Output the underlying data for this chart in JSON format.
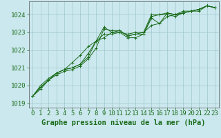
{
  "background_color": "#cbe8ee",
  "plot_bg_color": "#cbe8ee",
  "grid_color": "#a0c8cc",
  "line_color": "#1a6b1a",
  "xlabel": "Graphe pression niveau de la mer (hPa)",
  "xlabel_fontsize": 7.5,
  "tick_fontsize": 6.5,
  "xlim": [
    -0.5,
    23.5
  ],
  "ylim": [
    1018.75,
    1024.75
  ],
  "yticks": [
    1019,
    1020,
    1021,
    1022,
    1023,
    1024
  ],
  "xticks": [
    0,
    1,
    2,
    3,
    4,
    5,
    6,
    7,
    8,
    9,
    10,
    11,
    12,
    13,
    14,
    15,
    16,
    17,
    18,
    19,
    20,
    21,
    22,
    23
  ],
  "series": [
    [
      1019.4,
      1019.8,
      1020.3,
      1020.6,
      1020.8,
      1020.9,
      1021.1,
      1021.5,
      1022.1,
      1023.2,
      1023.1,
      1023.1,
      1022.8,
      1022.9,
      1023.0,
      1024.0,
      1024.0,
      1024.0,
      1023.9,
      1024.1,
      1024.2,
      1024.2,
      1024.5,
      1024.4
    ],
    [
      1019.4,
      1019.9,
      1020.3,
      1020.7,
      1020.9,
      1021.0,
      1021.2,
      1021.6,
      1022.5,
      1022.7,
      1023.0,
      1023.0,
      1022.7,
      1022.7,
      1022.9,
      1023.8,
      1023.5,
      1024.1,
      1024.0,
      1024.2,
      1024.2,
      1024.3,
      1024.5,
      1024.4
    ],
    [
      1019.4,
      1019.9,
      1020.3,
      1020.7,
      1020.9,
      1021.0,
      1021.2,
      1021.8,
      1022.5,
      1023.3,
      1023.0,
      1023.1,
      1022.8,
      1022.9,
      1022.9,
      1023.9,
      1024.0,
      1024.1,
      1024.0,
      1024.1,
      1024.2,
      1024.3,
      1024.5,
      1024.4
    ],
    [
      1019.4,
      1020.0,
      1020.4,
      1020.7,
      1020.9,
      1021.3,
      1021.7,
      1022.2,
      1022.5,
      1022.9,
      1022.9,
      1023.0,
      1022.9,
      1023.0,
      1023.0,
      1023.4,
      1023.5,
      1023.9,
      1024.0,
      1024.1,
      1024.2,
      1024.3,
      1024.5,
      1024.4
    ]
  ]
}
